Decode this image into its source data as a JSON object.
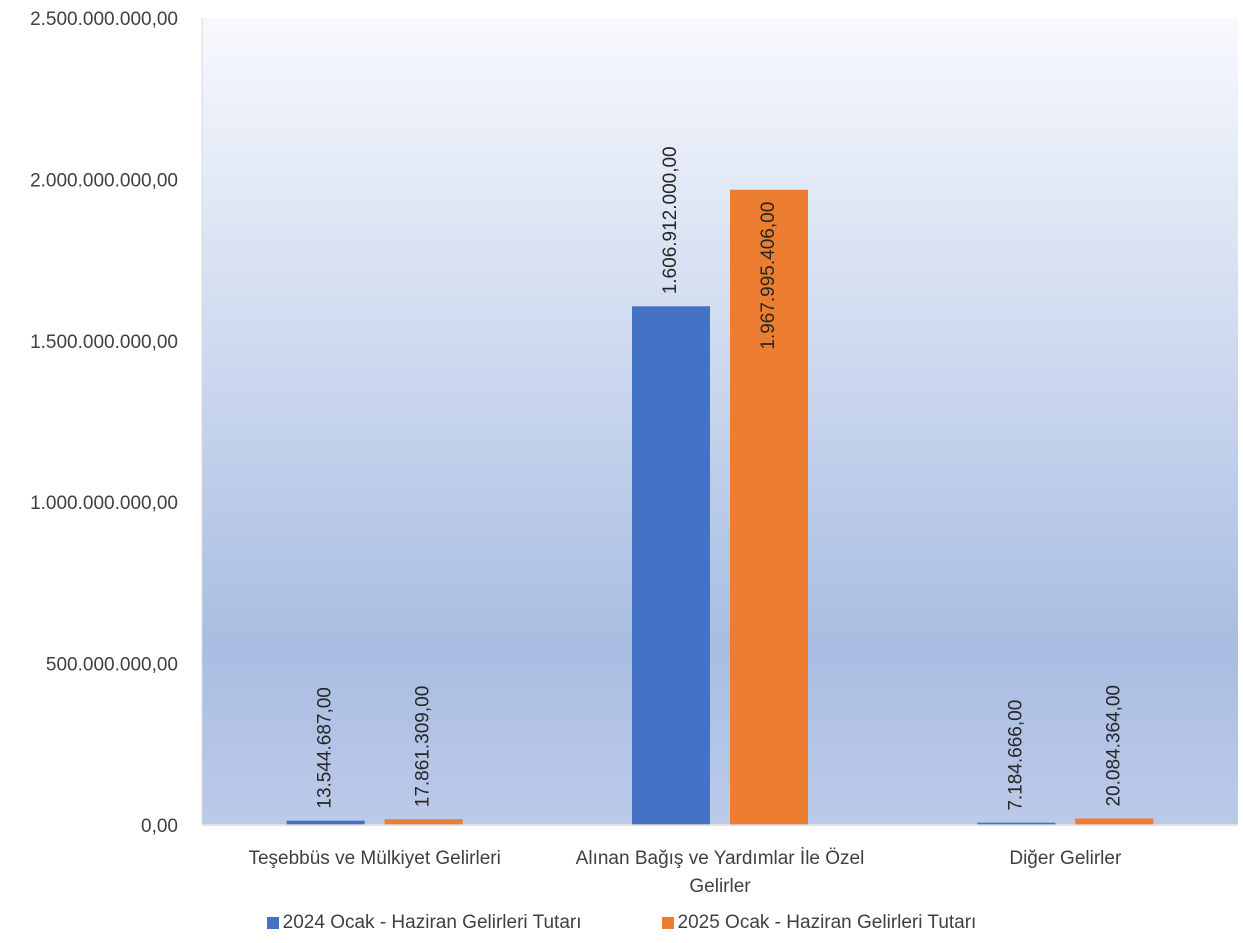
{
  "chart_data": {
    "type": "bar",
    "categories": [
      [
        "Teşebbüs ve Mülkiyet Gelirleri"
      ],
      [
        "Alınan Bağış ve Yardımlar İle Özel",
        "Gelirler"
      ],
      [
        "Diğer Gelirler"
      ]
    ],
    "series": [
      {
        "name": "2024 Ocak - Haziran Gelirleri Tutarı",
        "color": "#4472C4",
        "values": [
          13544687,
          1606912000,
          7184666
        ],
        "labels": [
          "13.544.687,00",
          "1.606.912.000,00",
          "7.184.666,00"
        ]
      },
      {
        "name": "2025 Ocak - Haziran Gelirleri Tutarı",
        "color": "#ED7D31",
        "values": [
          17861309,
          1967995406,
          20084364
        ],
        "labels": [
          "17.861.309,00",
          "1.967.995.406,00",
          "20.084.364,00"
        ]
      }
    ],
    "ylim": [
      0,
      2500000000
    ],
    "yticks": [
      0,
      500000000,
      1000000000,
      1500000000,
      2000000000,
      2500000000
    ],
    "ytick_labels": [
      "0,00",
      "500.000.000,00",
      "1.000.000.000,00",
      "1.500.000.000,00",
      "2.000.000.000,00",
      "2.500.000.000,00"
    ],
    "legend_position": "bottom",
    "grid": false,
    "background": "gradient-blue"
  }
}
